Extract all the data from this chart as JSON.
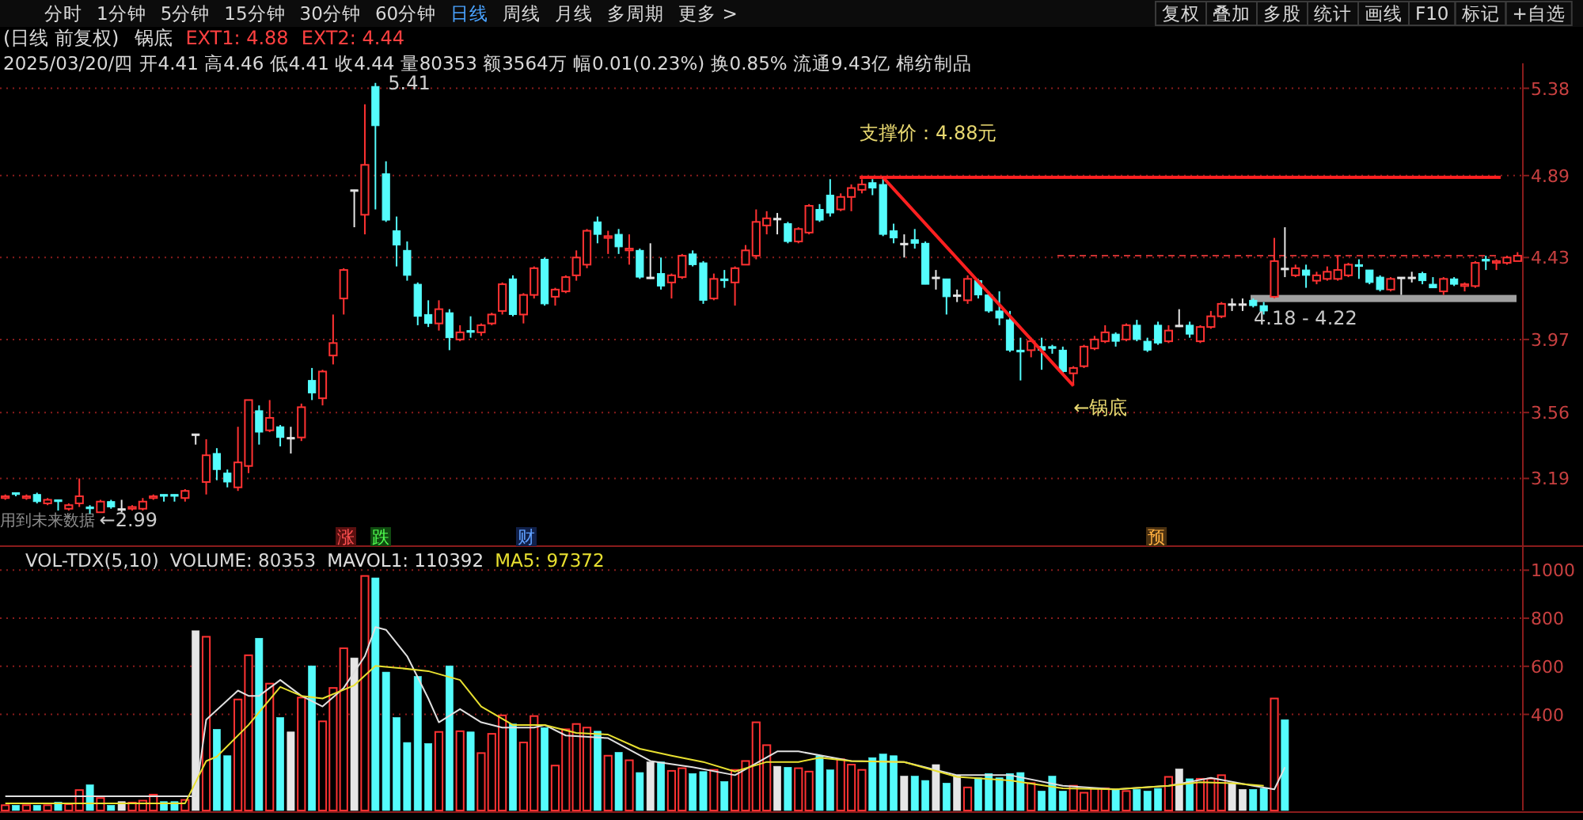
{
  "chart_data": [
    {
      "type": "other",
      "annotations": [
        "分时",
        "1分钟",
        "5分钟",
        "15分钟",
        "30分钟",
        "60分钟",
        "日线",
        "周线",
        "月线",
        "多周期",
        "更多 >",
        "复权",
        "叠加",
        "多股",
        "统计",
        "画线",
        "F10",
        "标记",
        "+自选"
      ]
    },
    {
      "type": "candlestick",
      "title": "(日线 前复权)",
      "subtitle": "2025/03/20/四 开4.41 高4.46 低4.41 收4.44 量80353 额3564万 幅0.01(0.23%) 换0.85% 流通9.43亿 棉纺制品",
      "categories": [
        null,
        null,
        null,
        null,
        null,
        null,
        null,
        null,
        null,
        null,
        null,
        null,
        null,
        null,
        null,
        null,
        null,
        null,
        null,
        null,
        null,
        null,
        null,
        null,
        null,
        null,
        null,
        null,
        null,
        null,
        null,
        null,
        null,
        null,
        null,
        null,
        null,
        null,
        null,
        null,
        null,
        null,
        null,
        null,
        null,
        null,
        null,
        null,
        null,
        null,
        null,
        null,
        null,
        null,
        null,
        null,
        null,
        null,
        null,
        null,
        null,
        null,
        null,
        null,
        null,
        null,
        null,
        null,
        null,
        null,
        null,
        null,
        null,
        null,
        null,
        null,
        null,
        null,
        null,
        null,
        null,
        null,
        null,
        null,
        null,
        null,
        null,
        null,
        null,
        null,
        null,
        null,
        null,
        null,
        null,
        null,
        null,
        null,
        null,
        null,
        null,
        null,
        null,
        null,
        null,
        null,
        null,
        null,
        null,
        null,
        null,
        null,
        null,
        null,
        null,
        null,
        null,
        null,
        null,
        null,
        null,
        null,
        null,
        null,
        null,
        null,
        null,
        null,
        null,
        null,
        null,
        null,
        null,
        null,
        null,
        null,
        null,
        null,
        null,
        null,
        null,
        null,
        null,
        null
      ],
      "ohlc": [
        [
          3.08,
          3.1,
          3.07,
          3.09
        ],
        [
          3.11,
          3.11,
          3.09,
          3.1
        ],
        [
          3.08,
          3.1,
          3.07,
          3.09
        ],
        [
          3.1,
          3.11,
          3.05,
          3.06
        ],
        [
          3.05,
          3.08,
          3.04,
          3.07
        ],
        [
          3.07,
          3.07,
          3.01,
          3.06
        ],
        [
          3.02,
          3.05,
          3.01,
          3.04
        ],
        [
          3.05,
          3.19,
          3.03,
          3.09
        ],
        [
          3.03,
          3.04,
          2.99,
          3.02
        ],
        [
          3.0,
          3.07,
          3.0,
          3.06
        ],
        [
          3.06,
          3.07,
          3.02,
          3.03
        ],
        [
          3.02,
          3.07,
          3.0,
          3.02
        ],
        [
          3.02,
          3.04,
          3.01,
          3.03
        ],
        [
          3.02,
          3.08,
          3.01,
          3.06
        ],
        [
          3.08,
          3.1,
          3.07,
          3.09
        ],
        [
          3.1,
          3.1,
          3.06,
          3.09
        ],
        [
          3.1,
          3.1,
          3.06,
          3.09
        ],
        [
          3.08,
          3.13,
          3.06,
          3.12
        ],
        [
          3.44,
          3.44,
          3.38,
          3.44
        ],
        [
          3.17,
          3.41,
          3.1,
          3.32
        ],
        [
          3.33,
          3.36,
          3.18,
          3.24
        ],
        [
          3.22,
          3.24,
          3.14,
          3.17
        ],
        [
          3.14,
          3.48,
          3.12,
          3.28
        ],
        [
          3.26,
          3.63,
          3.22,
          3.63
        ],
        [
          3.57,
          3.6,
          3.38,
          3.45
        ],
        [
          3.46,
          3.63,
          3.45,
          3.53
        ],
        [
          3.48,
          3.49,
          3.37,
          3.42
        ],
        [
          3.42,
          3.48,
          3.33,
          3.42
        ],
        [
          3.42,
          3.61,
          3.4,
          3.59
        ],
        [
          3.74,
          3.81,
          3.63,
          3.67
        ],
        [
          3.64,
          3.8,
          3.6,
          3.79
        ],
        [
          3.88,
          4.11,
          3.83,
          3.95
        ],
        [
          4.2,
          4.37,
          4.11,
          4.36
        ],
        [
          4.81,
          4.81,
          4.6,
          4.81
        ],
        [
          4.67,
          5.29,
          4.56,
          4.95
        ],
        [
          5.39,
          5.41,
          4.7,
          5.17
        ],
        [
          4.9,
          4.97,
          4.63,
          4.64
        ],
        [
          4.58,
          4.66,
          4.38,
          4.5
        ],
        [
          4.47,
          4.52,
          4.3,
          4.33
        ],
        [
          4.28,
          4.29,
          4.05,
          4.1
        ],
        [
          4.11,
          4.19,
          4.04,
          4.06
        ],
        [
          4.06,
          4.19,
          4.02,
          4.14
        ],
        [
          4.12,
          4.14,
          3.91,
          3.98
        ],
        [
          3.97,
          4.05,
          3.96,
          4.01
        ],
        [
          4.02,
          4.1,
          3.98,
          4.01
        ],
        [
          4.01,
          4.06,
          3.99,
          4.05
        ],
        [
          4.06,
          4.12,
          4.05,
          4.11
        ],
        [
          4.13,
          4.29,
          4.11,
          4.28
        ],
        [
          4.31,
          4.33,
          4.1,
          4.11
        ],
        [
          4.11,
          4.23,
          4.06,
          4.22
        ],
        [
          4.22,
          4.38,
          4.2,
          4.37
        ],
        [
          4.42,
          4.43,
          4.16,
          4.17
        ],
        [
          4.21,
          4.26,
          4.16,
          4.25
        ],
        [
          4.24,
          4.33,
          4.23,
          4.32
        ],
        [
          4.33,
          4.47,
          4.3,
          4.43
        ],
        [
          4.39,
          4.59,
          4.37,
          4.58
        ],
        [
          4.63,
          4.66,
          4.51,
          4.56
        ],
        [
          4.54,
          4.58,
          4.45,
          4.55
        ],
        [
          4.56,
          4.59,
          4.45,
          4.49
        ],
        [
          4.47,
          4.56,
          4.39,
          4.48
        ],
        [
          4.47,
          4.48,
          4.31,
          4.32
        ],
        [
          4.32,
          4.51,
          4.31,
          4.32
        ],
        [
          4.34,
          4.43,
          4.25,
          4.27
        ],
        [
          4.29,
          4.34,
          4.2,
          4.33
        ],
        [
          4.32,
          4.45,
          4.31,
          4.44
        ],
        [
          4.45,
          4.47,
          4.38,
          4.39
        ],
        [
          4.4,
          4.41,
          4.17,
          4.19
        ],
        [
          4.2,
          4.34,
          4.19,
          4.31
        ],
        [
          4.31,
          4.36,
          4.26,
          4.3
        ],
        [
          4.29,
          4.38,
          4.16,
          4.37
        ],
        [
          4.39,
          4.5,
          4.39,
          4.47
        ],
        [
          4.44,
          4.7,
          4.42,
          4.63
        ],
        [
          4.61,
          4.69,
          4.56,
          4.65
        ],
        [
          4.65,
          4.68,
          4.56,
          4.65
        ],
        [
          4.62,
          4.63,
          4.51,
          4.52
        ],
        [
          4.52,
          4.6,
          4.51,
          4.59
        ],
        [
          4.57,
          4.73,
          4.56,
          4.72
        ],
        [
          4.7,
          4.73,
          4.63,
          4.64
        ],
        [
          4.78,
          4.87,
          4.66,
          4.68
        ],
        [
          4.7,
          4.79,
          4.69,
          4.77
        ],
        [
          4.77,
          4.84,
          4.69,
          4.82
        ],
        [
          4.81,
          4.87,
          4.79,
          4.84
        ],
        [
          4.85,
          4.87,
          4.78,
          4.82
        ],
        [
          4.84,
          4.88,
          4.55,
          4.56
        ],
        [
          4.58,
          4.62,
          4.51,
          4.54
        ],
        [
          4.51,
          4.56,
          4.43,
          4.51
        ],
        [
          4.53,
          4.59,
          4.48,
          4.51
        ],
        [
          4.51,
          4.52,
          4.28,
          4.28
        ],
        [
          4.32,
          4.36,
          4.25,
          4.32
        ],
        [
          4.31,
          4.31,
          4.11,
          4.21
        ],
        [
          4.22,
          4.25,
          4.18,
          4.22
        ],
        [
          4.19,
          4.33,
          4.17,
          4.31
        ],
        [
          4.3,
          4.31,
          4.2,
          4.22
        ],
        [
          4.22,
          4.24,
          4.12,
          4.13
        ],
        [
          4.13,
          4.24,
          4.05,
          4.09
        ],
        [
          4.08,
          4.13,
          3.9,
          3.91
        ],
        [
          3.91,
          3.98,
          3.74,
          3.9
        ],
        [
          3.91,
          3.98,
          3.87,
          3.96
        ],
        [
          3.93,
          3.98,
          3.8,
          3.91
        ],
        [
          3.93,
          3.94,
          3.89,
          3.92
        ],
        [
          3.91,
          3.93,
          3.78,
          3.79
        ],
        [
          3.78,
          3.82,
          3.71,
          3.81
        ],
        [
          3.82,
          3.94,
          3.81,
          3.93
        ],
        [
          3.92,
          3.99,
          3.91,
          3.97
        ],
        [
          3.96,
          4.05,
          3.95,
          4.01
        ],
        [
          4.0,
          4.01,
          3.93,
          3.96
        ],
        [
          3.97,
          4.06,
          3.96,
          4.05
        ],
        [
          4.05,
          4.08,
          3.96,
          3.97
        ],
        [
          3.96,
          3.98,
          3.9,
          3.91
        ],
        [
          4.05,
          4.07,
          3.94,
          3.95
        ],
        [
          3.96,
          4.05,
          3.95,
          4.02
        ],
        [
          4.05,
          4.14,
          4.04,
          4.05
        ],
        [
          4.05,
          4.07,
          3.98,
          4.0
        ],
        [
          3.96,
          4.05,
          3.95,
          4.04
        ],
        [
          4.04,
          4.13,
          4.03,
          4.1
        ],
        [
          4.1,
          4.18,
          4.09,
          4.17
        ],
        [
          4.17,
          4.2,
          4.13,
          4.17
        ],
        [
          4.17,
          4.2,
          4.13,
          4.17
        ],
        [
          4.19,
          4.2,
          4.15,
          4.16
        ],
        [
          4.16,
          4.18,
          4.11,
          4.13
        ],
        [
          4.21,
          4.54,
          4.2,
          4.41
        ],
        [
          4.37,
          4.6,
          4.32,
          4.37
        ],
        [
          4.33,
          4.39,
          4.32,
          4.37
        ],
        [
          4.36,
          4.39,
          4.26,
          4.33
        ],
        [
          4.3,
          4.35,
          4.28,
          4.33
        ],
        [
          4.31,
          4.38,
          4.3,
          4.35
        ],
        [
          4.31,
          4.44,
          4.3,
          4.36
        ],
        [
          4.33,
          4.4,
          4.32,
          4.39
        ],
        [
          4.39,
          4.42,
          4.31,
          4.38
        ],
        [
          4.36,
          4.36,
          4.28,
          4.29
        ],
        [
          4.32,
          4.33,
          4.24,
          4.25
        ],
        [
          4.25,
          4.32,
          4.24,
          4.31
        ],
        [
          4.32,
          4.32,
          4.22,
          4.32
        ],
        [
          4.32,
          4.35,
          4.29,
          4.32
        ],
        [
          4.34,
          4.35,
          4.28,
          4.3
        ],
        [
          4.28,
          4.32,
          4.26,
          4.26
        ],
        [
          4.24,
          4.32,
          4.22,
          4.31
        ],
        [
          4.31,
          4.32,
          4.27,
          4.28
        ],
        [
          4.27,
          4.29,
          4.24,
          4.28
        ],
        [
          4.27,
          4.41,
          4.26,
          4.4
        ],
        [
          4.42,
          4.44,
          4.36,
          4.41
        ],
        [
          4.4,
          4.42,
          4.36,
          4.41
        ],
        [
          4.4,
          4.44,
          4.39,
          4.43
        ],
        [
          4.41,
          4.46,
          4.41,
          4.44
        ]
      ],
      "colors": [
        "#ff3232",
        "#54fcfc",
        "#ff3232",
        "#54fcfc",
        "#ff3232",
        "#54fcfc",
        "#ff3232",
        "#ff3232",
        "#54fcfc",
        "#ff3232",
        "#54fcfc",
        "#e6e6e6",
        "#ff3232",
        "#ff3232",
        "#ff3232",
        "#54fcfc",
        "#54fcfc",
        "#ff3232",
        "#e6e6e6",
        "#ff3232",
        "#54fcfc",
        "#54fcfc",
        "#ff3232",
        "#ff3232",
        "#54fcfc",
        "#ff3232",
        "#54fcfc",
        "#e6e6e6",
        "#ff3232",
        "#54fcfc",
        "#ff3232",
        "#ff3232",
        "#ff3232",
        "#e6e6e6",
        "#ff3232",
        "#54fcfc",
        "#54fcfc",
        "#54fcfc",
        "#54fcfc",
        "#54fcfc",
        "#54fcfc",
        "#ff3232",
        "#54fcfc",
        "#ff3232",
        "#54fcfc",
        "#ff3232",
        "#ff3232",
        "#ff3232",
        "#54fcfc",
        "#ff3232",
        "#ff3232",
        "#54fcfc",
        "#ff3232",
        "#ff3232",
        "#ff3232",
        "#ff3232",
        "#54fcfc",
        "#ff3232",
        "#54fcfc",
        "#ff3232",
        "#54fcfc",
        "#e6e6e6",
        "#54fcfc",
        "#ff3232",
        "#ff3232",
        "#54fcfc",
        "#54fcfc",
        "#ff3232",
        "#54fcfc",
        "#ff3232",
        "#ff3232",
        "#ff3232",
        "#ff3232",
        "#e6e6e6",
        "#54fcfc",
        "#ff3232",
        "#ff3232",
        "#54fcfc",
        "#54fcfc",
        "#ff3232",
        "#ff3232",
        "#ff3232",
        "#54fcfc",
        "#54fcfc",
        "#54fcfc",
        "#e6e6e6",
        "#54fcfc",
        "#54fcfc",
        "#e6e6e6",
        "#54fcfc",
        "#e6e6e6",
        "#ff3232",
        "#54fcfc",
        "#54fcfc",
        "#54fcfc",
        "#54fcfc",
        "#54fcfc",
        "#ff3232",
        "#54fcfc",
        "#54fcfc",
        "#54fcfc",
        "#ff3232",
        "#ff3232",
        "#ff3232",
        "#ff3232",
        "#54fcfc",
        "#ff3232",
        "#54fcfc",
        "#54fcfc",
        "#54fcfc",
        "#ff3232",
        "#e6e6e6",
        "#54fcfc",
        "#ff3232",
        "#ff3232",
        "#ff3232",
        "#e6e6e6",
        "#e6e6e6",
        "#54fcfc",
        "#54fcfc",
        "#ff3232",
        "#e6e6e6",
        "#ff3232",
        "#54fcfc",
        "#ff3232",
        "#ff3232",
        "#ff3232",
        "#ff3232",
        "#54fcfc",
        "#54fcfc",
        "#54fcfc",
        "#ff3232",
        "#e6e6e6",
        "#e6e6e6",
        "#54fcfc",
        "#54fcfc",
        "#ff3232",
        "#54fcfc",
        "#ff3232",
        "#ff3232",
        "#54fcfc",
        "#ff3232",
        "#ff3232",
        "#ff3232"
      ],
      "series": [
        {
          "type": "line",
          "values": [
            null,
            null,
            null,
            null,
            null,
            null,
            null,
            null,
            null,
            null,
            null,
            null,
            null,
            null,
            null,
            null,
            null,
            null,
            null,
            null,
            null,
            null,
            null,
            null,
            null,
            null,
            null,
            null,
            null,
            null,
            null,
            null,
            null,
            null,
            null,
            null,
            null,
            null,
            null,
            null,
            null,
            null,
            null,
            null,
            null,
            null,
            null,
            null,
            null,
            null,
            null,
            null,
            null,
            null,
            null,
            null,
            null,
            null,
            null,
            null,
            null,
            null,
            null,
            null,
            null,
            null,
            null,
            null,
            null,
            null,
            null,
            null,
            null,
            null,
            null,
            null,
            null,
            null,
            null,
            null,
            null,
            null,
            null,
            4.88,
            null,
            null,
            null,
            null,
            null,
            null,
            null,
            null,
            null,
            null,
            null,
            null,
            null,
            null,
            null,
            null,
            null,
            3.71,
            null,
            null,
            null,
            null,
            null,
            null,
            null,
            null,
            null,
            null,
            null,
            null,
            null,
            null,
            null,
            null,
            null,
            null,
            null,
            null,
            null,
            null,
            null,
            null,
            null,
            null,
            null,
            null,
            null,
            null,
            null,
            null,
            null,
            null,
            null,
            null,
            null,
            null,
            null,
            null,
            null,
            null
          ],
          "color": "#ff2020"
        }
      ],
      "ylim": [
        2.81,
        5.52
      ],
      "yticks": [
        5.38,
        4.89,
        4.43,
        3.97,
        3.56,
        3.19
      ],
      "grid": "y",
      "ref_lines": [
        {
          "axis": "y",
          "value": 4.88,
          "label": "支撑价：4.88元",
          "color": "#ff2020"
        },
        {
          "axis": "y",
          "value": 4.44,
          "color": "#c83030",
          "line_style": "dashed"
        }
      ],
      "bands": [
        {
          "axis": "y",
          "from": 4.18,
          "to": 4.22,
          "label": "4.18 - 4.22",
          "color": "#a0a0a0"
        }
      ],
      "annotations": [
        "锅底",
        "EXT1: 4.88",
        "EXT2: 4.44",
        "5.41",
        {
          "text": "←2.99",
          "y": 2.99
        },
        "←锅底",
        "用到未来数据",
        "涨",
        "跌",
        "财",
        "预"
      ]
    },
    {
      "type": "bar",
      "title": "VOL-TDX(5,10)",
      "categories": [
        null,
        null,
        null,
        null,
        null,
        null,
        null,
        null,
        null,
        null,
        null,
        null,
        null,
        null,
        null,
        null,
        null,
        null,
        null,
        null,
        null,
        null,
        null,
        null,
        null,
        null,
        null,
        null,
        null,
        null,
        null,
        null,
        null,
        null,
        null,
        null,
        null,
        null,
        null,
        null,
        null,
        null,
        null,
        null,
        null,
        null,
        null,
        null,
        null,
        null,
        null,
        null,
        null,
        null,
        null,
        null,
        null,
        null,
        null,
        null,
        null,
        null,
        null,
        null,
        null,
        null,
        null,
        null,
        null,
        null,
        null,
        null,
        null,
        null,
        null,
        null,
        null,
        null,
        null,
        null,
        null,
        null,
        null,
        null,
        null,
        null,
        null,
        null,
        null,
        null,
        null,
        null,
        null,
        null,
        null,
        null,
        null,
        null,
        null,
        null,
        null,
        null,
        null,
        null,
        null,
        null,
        null,
        null,
        null,
        null,
        null,
        null,
        null,
        null,
        null,
        null,
        null,
        null,
        null,
        null,
        null,
        null,
        null,
        null,
        null,
        null,
        null,
        null,
        null,
        null,
        null,
        null,
        null,
        null,
        null,
        null,
        null,
        null,
        null,
        null,
        null,
        null,
        null,
        null
      ],
      "series": [
        {
          "type": "bar",
          "values": [
            22,
            22,
            22,
            22,
            22,
            35,
            26,
            85,
            107,
            52,
            22,
            37,
            33,
            41,
            66,
            37,
            37,
            44,
            748,
            723,
            338,
            228,
            462,
            646,
            717,
            528,
            387,
            327,
            470,
            602,
            371,
            510,
            675,
            635,
            976,
            968,
            576,
            387,
            283,
            558,
            279,
            327,
            602,
            330,
            327,
            239,
            319,
            396,
            360,
            283,
            393,
            345,
            187,
            338,
            360,
            345,
            330,
            228,
            242,
            209,
            158,
            202,
            202,
            165,
            176,
            154,
            162,
            169,
            121,
            169,
            206,
            367,
            272,
            184,
            180,
            176,
            162,
            228,
            169,
            213,
            191,
            169,
            220,
            235,
            228,
            143,
            143,
            125,
            191,
            114,
            147,
            96,
            136,
            154,
            136,
            154,
            158,
            114,
            81,
            143,
            81,
            103,
            74,
            92,
            92,
            88,
            81,
            88,
            81,
            92,
            140,
            173,
            132,
            132,
            132,
            147,
            114,
            88,
            88,
            92,
            466,
            378,
            null,
            null,
            null,
            null,
            null,
            null,
            null,
            null,
            null,
            null,
            null,
            null,
            null,
            null,
            null,
            null,
            null,
            null,
            null,
            null,
            null,
            null
          ],
          "colors": [
            "#ff3232",
            "#54fcfc",
            "#ff3232",
            "#54fcfc",
            "#ff3232",
            "#54fcfc",
            "#ff3232",
            "#ff3232",
            "#54fcfc",
            "#ff3232",
            "#54fcfc",
            "#e6e6e6",
            "#ff3232",
            "#ff3232",
            "#ff3232",
            "#54fcfc",
            "#54fcfc",
            "#ff3232",
            "#e6e6e6",
            "#ff3232",
            "#54fcfc",
            "#54fcfc",
            "#ff3232",
            "#ff3232",
            "#54fcfc",
            "#ff3232",
            "#54fcfc",
            "#e6e6e6",
            "#ff3232",
            "#54fcfc",
            "#ff3232",
            "#ff3232",
            "#ff3232",
            "#e6e6e6",
            "#ff3232",
            "#54fcfc",
            "#54fcfc",
            "#54fcfc",
            "#54fcfc",
            "#54fcfc",
            "#54fcfc",
            "#ff3232",
            "#54fcfc",
            "#ff3232",
            "#54fcfc",
            "#ff3232",
            "#ff3232",
            "#ff3232",
            "#54fcfc",
            "#ff3232",
            "#ff3232",
            "#54fcfc",
            "#ff3232",
            "#ff3232",
            "#ff3232",
            "#ff3232",
            "#54fcfc",
            "#ff3232",
            "#54fcfc",
            "#ff3232",
            "#54fcfc",
            "#e6e6e6",
            "#54fcfc",
            "#ff3232",
            "#ff3232",
            "#54fcfc",
            "#54fcfc",
            "#ff3232",
            "#54fcfc",
            "#ff3232",
            "#ff3232",
            "#ff3232",
            "#ff3232",
            "#e6e6e6",
            "#54fcfc",
            "#ff3232",
            "#ff3232",
            "#54fcfc",
            "#54fcfc",
            "#ff3232",
            "#ff3232",
            "#ff3232",
            "#54fcfc",
            "#54fcfc",
            "#54fcfc",
            "#e6e6e6",
            "#54fcfc",
            "#54fcfc",
            "#e6e6e6",
            "#54fcfc",
            "#e6e6e6",
            "#ff3232",
            "#54fcfc",
            "#54fcfc",
            "#54fcfc",
            "#54fcfc",
            "#54fcfc",
            "#ff3232",
            "#54fcfc",
            "#54fcfc",
            "#54fcfc",
            "#ff3232",
            "#ff3232",
            "#ff3232",
            "#ff3232",
            "#54fcfc",
            "#ff3232",
            "#54fcfc",
            "#54fcfc",
            "#54fcfc",
            "#ff3232",
            "#e6e6e6",
            "#54fcfc",
            "#ff3232",
            "#ff3232",
            "#ff3232",
            "#e6e6e6",
            "#e6e6e6",
            "#54fcfc",
            "#54fcfc",
            "#ff3232",
            "#54fcfc",
            "#ff3232",
            "#54fcfc",
            "#ff3232",
            "#ff3232",
            "#ff3232",
            "#ff3232",
            "#54fcfc",
            "#54fcfc",
            "#54fcfc",
            "#ff3232",
            "#e6e6e6",
            "#e6e6e6",
            "#54fcfc",
            "#54fcfc",
            "#ff3232",
            "#54fcfc",
            "#ff3232",
            "#ff3232",
            "#54fcfc",
            "#ff3232",
            "#ff3232",
            "#ff3232"
          ]
        },
        {
          "type": "line",
          "name": "MAVOL1: 110392",
          "color": "#e0e0e0",
          "values": [
            59,
            null,
            null,
            null,
            null,
            null,
            null,
            null,
            null,
            null,
            null,
            null,
            null,
            null,
            null,
            null,
            null,
            null,
            59,
            378,
            null,
            null,
            499,
            477,
            477,
            null,
            543,
            null,
            477,
            null,
            433,
            null,
            510,
            null,
            642,
            763,
            752,
            null,
            642,
            null,
            466,
            367,
            null,
            422,
            null,
            367,
            null,
            345,
            null,
            null,
            345,
            356,
            null,
            312,
            null,
            null,
            null,
            301,
            null,
            null,
            null,
            206,
            null,
            null,
            null,
            180,
            null,
            null,
            null,
            147,
            null,
            null,
            null,
            246,
            null,
            246,
            null,
            null,
            null,
            null,
            206,
            null,
            null,
            null,
            null,
            202,
            null,
            null,
            null,
            null,
            147,
            null,
            null,
            null,
            null,
            147,
            null,
            null,
            null,
            null,
            103,
            null,
            null,
            null,
            null,
            88,
            null,
            null,
            null,
            null,
            103,
            null,
            null,
            null,
            136,
            null,
            null,
            null,
            103,
            null,
            88,
            180,
            null,
            null,
            null,
            null,
            null,
            null,
            null,
            null,
            null,
            null,
            null,
            null,
            null,
            null,
            null,
            null,
            null,
            null,
            null,
            null,
            null,
            null
          ]
        },
        {
          "type": "line",
          "name": "MA5: 97372",
          "color": "#e8e030",
          "values": [
            30,
            null,
            null,
            null,
            null,
            null,
            null,
            null,
            null,
            null,
            null,
            null,
            null,
            null,
            null,
            null,
            null,
            30,
            null,
            206,
            224,
            null,
            null,
            356,
            null,
            null,
            514,
            null,
            477,
            null,
            466,
            null,
            null,
            521,
            null,
            602,
            null,
            594,
            null,
            null,
            580,
            null,
            null,
            543,
            null,
            433,
            null,
            null,
            356,
            null,
            null,
            356,
            null,
            null,
            323,
            null,
            null,
            316,
            null,
            null,
            257,
            null,
            null,
            228,
            null,
            null,
            202,
            null,
            null,
            162,
            null,
            null,
            202,
            null,
            null,
            202,
            null,
            220,
            null,
            null,
            206,
            null,
            null,
            null,
            null,
            202,
            null,
            null,
            null,
            null,
            140,
            null,
            null,
            null,
            null,
            125,
            null,
            null,
            null,
            null,
            92,
            null,
            null,
            null,
            null,
            88,
            null,
            null,
            null,
            null,
            103,
            null,
            null,
            118,
            null,
            null,
            114,
            null,
            null,
            103,
            null,
            null,
            null,
            null,
            null,
            null,
            null,
            null,
            null,
            null,
            null,
            null,
            null,
            null,
            null,
            null,
            null,
            null,
            null,
            null,
            null,
            null,
            null,
            null
          ]
        }
      ],
      "ylim": [
        0,
        1100
      ],
      "yticks": [
        1000,
        800,
        600,
        400
      ],
      "grid": "y",
      "legend": "top left",
      "annotations": [
        "VOLUME: 80353"
      ]
    }
  ]
}
